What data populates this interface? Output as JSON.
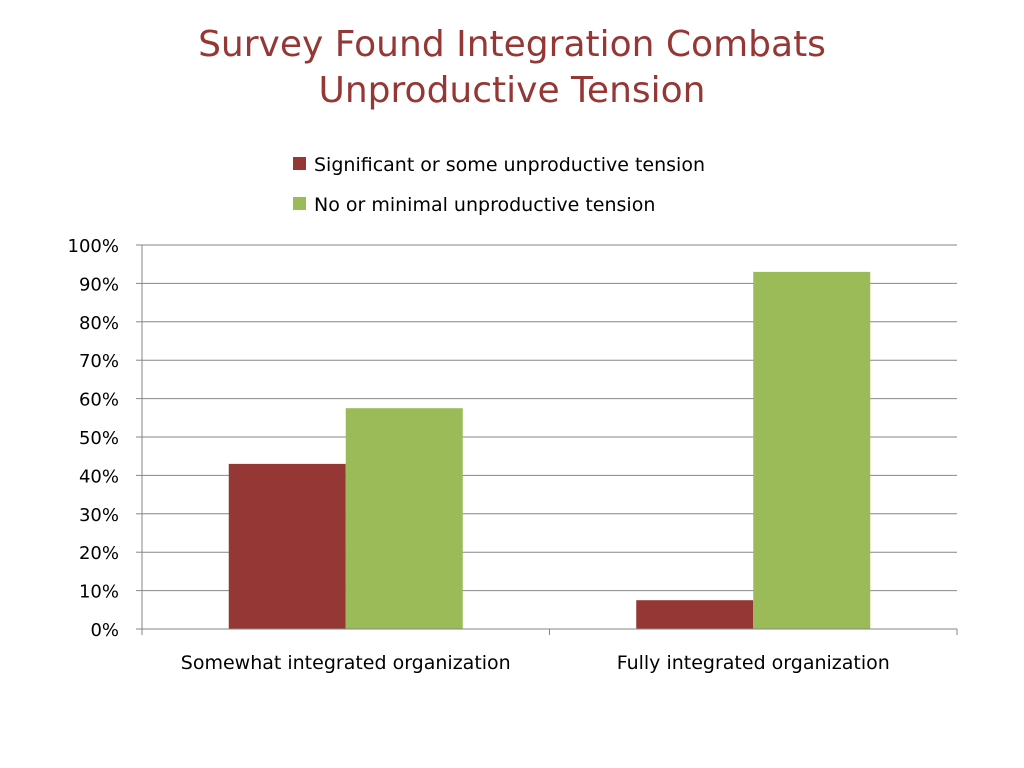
{
  "chart_data": {
    "type": "bar",
    "title": [
      "Survey Found Integration Combats",
      "Unproductive Tension"
    ],
    "categories": [
      "Somewhat integrated organization",
      "Fully integrated organization"
    ],
    "series": [
      {
        "name": "Significant or some unproductive tension",
        "values": [
          43,
          7.5
        ],
        "color": "#953735"
      },
      {
        "name": "No or minimal unproductive tension",
        "values": [
          57.5,
          93
        ],
        "color": "#9BBB59"
      }
    ],
    "ylim": [
      0,
      100
    ],
    "y_ticks": [
      "0%",
      "10%",
      "20%",
      "30%",
      "40%",
      "50%",
      "60%",
      "70%",
      "80%",
      "90%",
      "100%"
    ],
    "y_unit": "%",
    "grid": true,
    "legend_position": "top"
  },
  "colors": {
    "title": "#953735",
    "gridline": "#868686"
  }
}
